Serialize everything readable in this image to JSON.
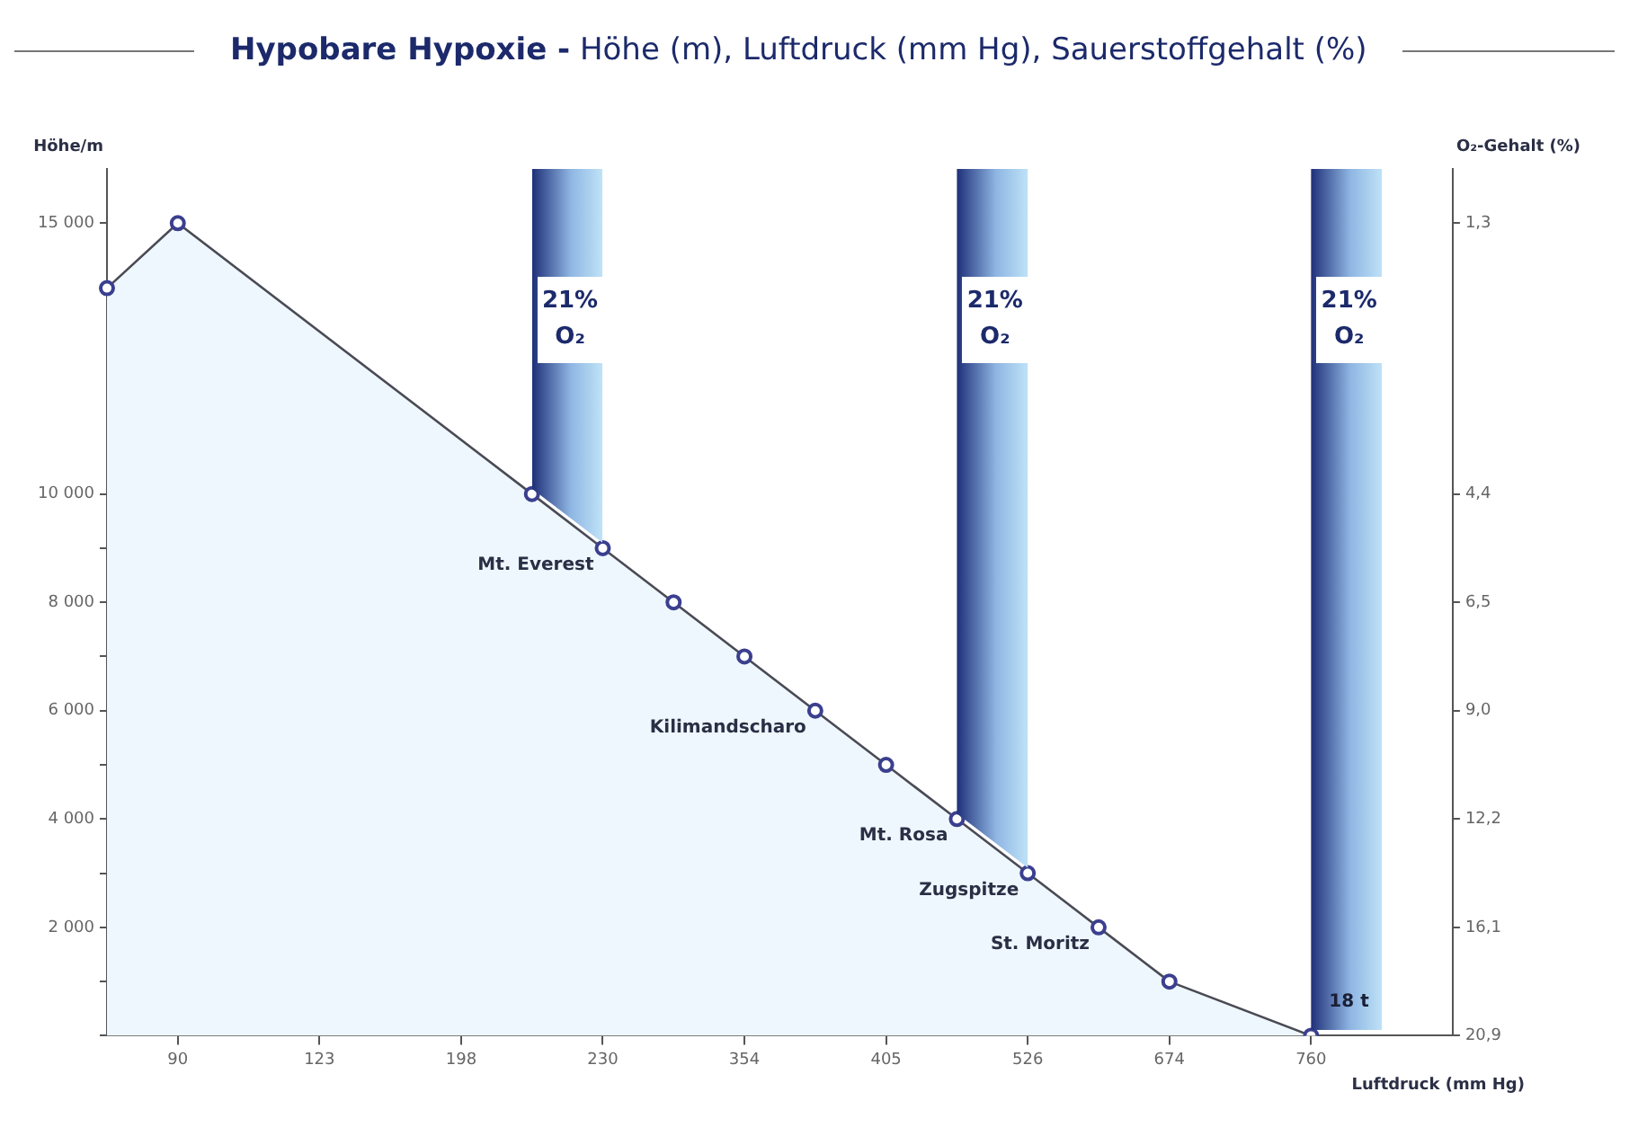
{
  "chart_data": {
    "type": "area",
    "title": "Hypobare Hypoxie -",
    "subtitle": "Höhe (m), Luftdruck (mm Hg), Sauerstoffgehalt (%)",
    "xlabel": "Luftdruck (mm Hg)",
    "ylabel": "Höhe/m",
    "y2label": "O₂-Gehalt (%)",
    "categories": [
      null,
      "90",
      null,
      "123",
      null,
      "198",
      null,
      "230",
      null,
      "354",
      null,
      "405",
      null,
      "526",
      null,
      "674",
      null,
      "760",
      null,
      null
    ],
    "series": [
      {
        "color": "#3b3f8f",
        "values": [
          13800,
          15000,
          null,
          null,
          null,
          null,
          10000,
          9000,
          8000,
          7000,
          6000,
          5000,
          4000,
          3000,
          2000,
          1000,
          null,
          0,
          null,
          null
        ],
        "value_labels": [
          null,
          null,
          null,
          null,
          null,
          null,
          null,
          "Mt. Everest",
          null,
          null,
          "Kilimandscharo",
          null,
          "Mt. Rosa",
          "Zugspitze",
          "St. Moritz",
          null,
          null,
          null,
          null,
          null
        ]
      }
    ],
    "ylim": [
      0,
      16000
    ],
    "yticks": [
      {
        "value": 0,
        "label": null
      },
      {
        "value": 1000,
        "label": null
      },
      {
        "value": 2000,
        "label": "2 000"
      },
      {
        "value": 3000,
        "label": null
      },
      {
        "value": 4000,
        "label": "4 000"
      },
      {
        "value": 5000,
        "label": null
      },
      {
        "value": 6000,
        "label": "6 000"
      },
      {
        "value": 7000,
        "label": null
      },
      {
        "value": 8000,
        "label": "8 000"
      },
      {
        "value": 9000,
        "label": null
      },
      {
        "value": 10000,
        "label": "10 000"
      },
      {
        "value": 15000,
        "label": "15 000"
      }
    ],
    "y2_categories": [
      null,
      "1,3",
      null,
      null,
      null,
      null,
      "4,4",
      null,
      "6,5",
      null,
      "9,0",
      null,
      "12,2",
      null,
      "16,1",
      null,
      "20,9"
    ],
    "annotations": [
      "21%\nO₂",
      "21%\nO₂",
      "21%\nO₂",
      "18 t"
    ],
    "marker": "circle",
    "grid": false,
    "legend": false
  }
}
